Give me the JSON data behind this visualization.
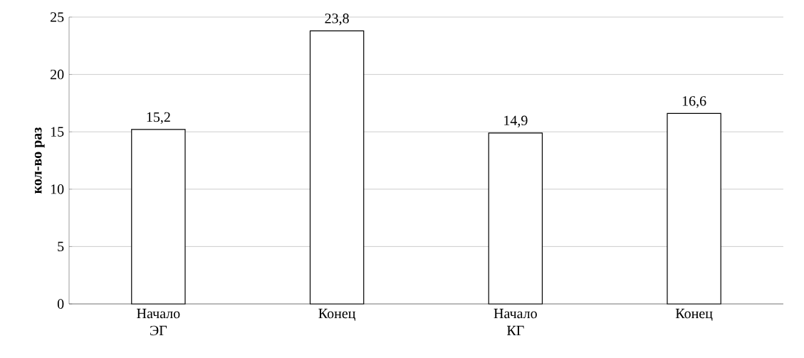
{
  "chart_data": {
    "type": "bar",
    "ylabel": "кол-во раз",
    "categories": [
      "Начало ЭГ",
      "Конец",
      "Начало КГ",
      "Конец"
    ],
    "values": [
      15.2,
      23.8,
      14.9,
      16.6
    ],
    "value_labels": [
      "15,2",
      "23,8",
      "14,9",
      "16,6"
    ],
    "color": "#ffffff",
    "ylim": [
      0,
      25
    ],
    "yticks": [
      0,
      5,
      10,
      15,
      20,
      25
    ],
    "grid": "y"
  }
}
